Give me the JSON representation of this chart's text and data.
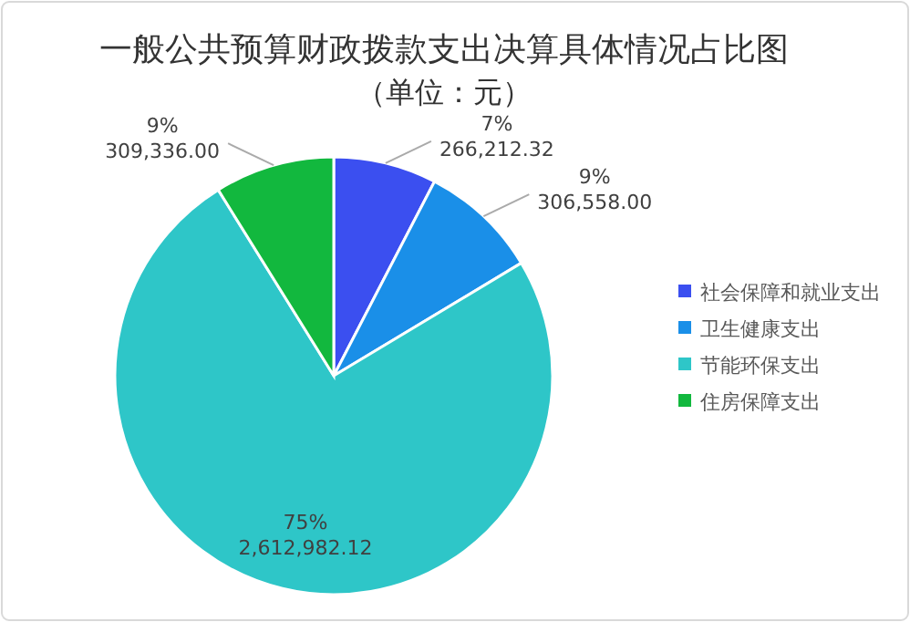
{
  "chart_data": {
    "type": "pie",
    "title": "一般公共预算财政拨款支出决算具体情况占比图",
    "subtitle": "（单位：元）",
    "categories": [
      "社会保障和就业支出",
      "卫生健康支出",
      "节能环保支出",
      "住房保障支出"
    ],
    "values": [
      266212.32,
      306558.0,
      2612982.12,
      309336.0
    ],
    "colors": [
      "#3b4ff0",
      "#1a8fe8",
      "#2ec6c8",
      "#12b83e"
    ],
    "value_labels": [
      "7%\n266,212.32",
      "9%\n306,558.00",
      "75%\n2,612,982.12",
      "9%\n309,336.00"
    ],
    "legend": "right"
  }
}
